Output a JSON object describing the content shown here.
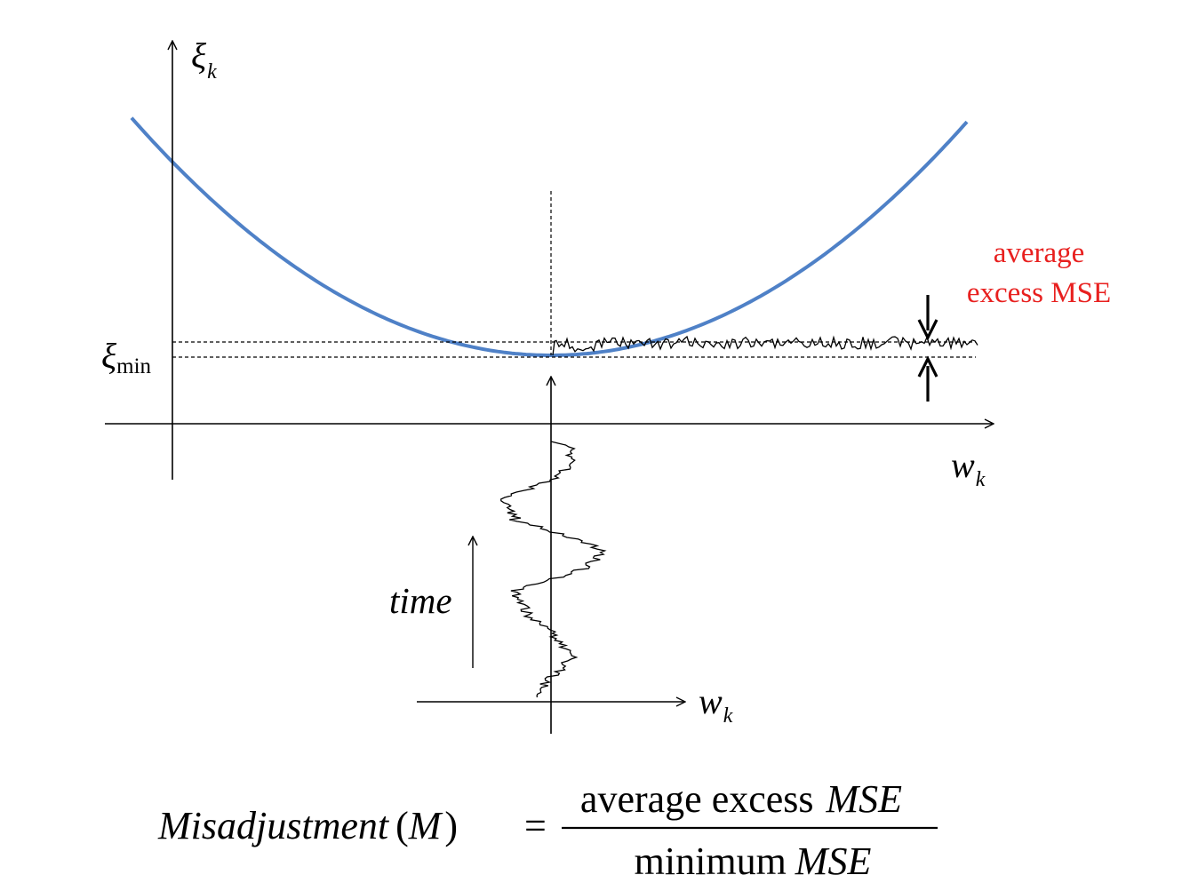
{
  "colors": {
    "curve": "#4f81c7",
    "annotation": "#e8201f",
    "ink": "#000000"
  },
  "labels": {
    "y_axis_symbol": "ξ",
    "y_axis_subscript": "k",
    "min_symbol": "ξ",
    "min_subscript": "min",
    "x_axis_symbol": "w",
    "x_axis_subscript": "k",
    "time_label": "time",
    "lower_x_symbol": "w",
    "lower_x_subscript": "k",
    "annotation_line1": "average",
    "annotation_line2": "excess MSE"
  },
  "formula": {
    "lhs": "Misadjustment",
    "lhs_paren_open": "(",
    "lhs_var": "M",
    "lhs_paren_close": ")",
    "equals": "=",
    "numerator_text": "average excess",
    "numerator_var": "MSE",
    "denominator_text": "minimum",
    "denominator_var": "MSE"
  }
}
